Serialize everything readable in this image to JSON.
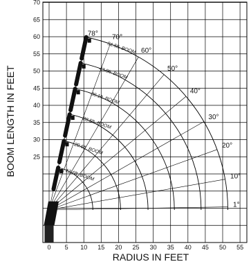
{
  "chart_data": {
    "type": "diagram",
    "xlabel": "RADIUS IN FEET",
    "ylabel": "BOOM LENGTH IN FEET",
    "xlim": [
      0,
      55
    ],
    "ylim": [
      0,
      70
    ],
    "x_ticks": [
      "0",
      "5",
      "10",
      "15",
      "20",
      "25",
      "30",
      "35",
      "40",
      "45",
      "50",
      "55"
    ],
    "y_ticks": [
      "25",
      "30",
      "35",
      "40",
      "45",
      "50",
      "55",
      "60",
      "65",
      "70"
    ],
    "angles": [
      {
        "label": "78°",
        "deg": 78
      },
      {
        "label": "70°",
        "deg": 70
      },
      {
        "label": "60°",
        "deg": 60
      },
      {
        "label": "50°",
        "deg": 50
      },
      {
        "label": "40°",
        "deg": 40
      },
      {
        "label": "30°",
        "deg": 30
      },
      {
        "label": "20°",
        "deg": 20
      },
      {
        "label": "10°",
        "deg": 10
      },
      {
        "label": "1°",
        "deg": 1
      }
    ],
    "booms": [
      {
        "label": "12.6ft. BOOM",
        "length": 12.6
      },
      {
        "label": "20.6ft. BOOM",
        "length": 20.6
      },
      {
        "label": "28.5ft. BOOM",
        "length": 28.5
      },
      {
        "label": "36.1ft. BOOM",
        "length": 36.1
      },
      {
        "label": "43.8ft. BOOM",
        "length": 43.8
      },
      {
        "label": "51.5ft. BOOM",
        "length": 51.5
      }
    ],
    "grid": true
  }
}
